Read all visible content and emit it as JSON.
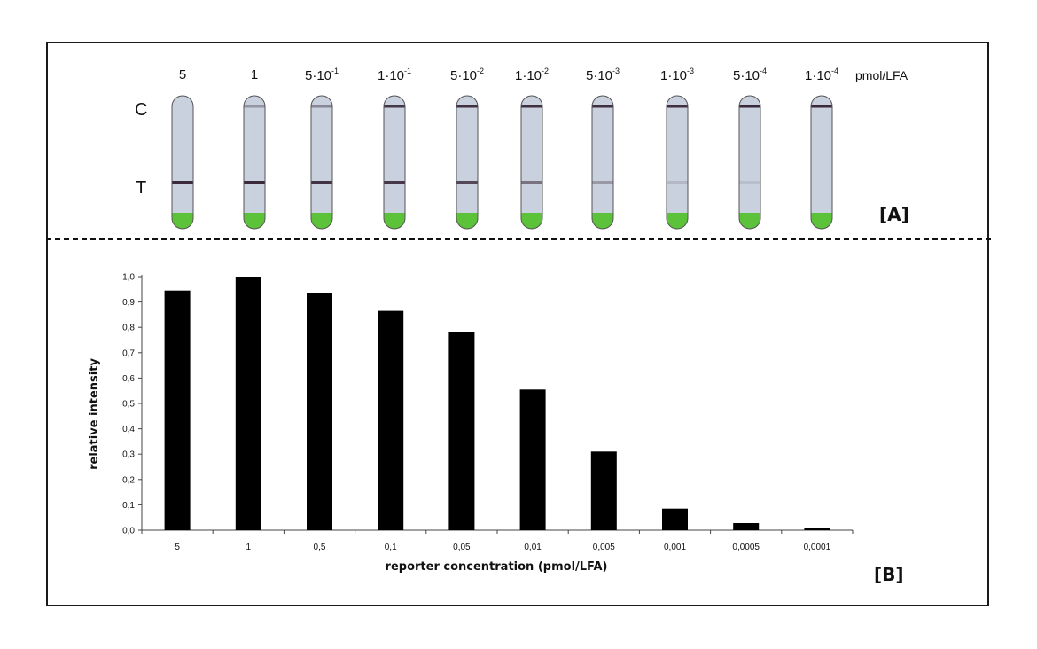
{
  "panel_a": {
    "tag": "[A]",
    "unit": "pmol/LFA",
    "row_c": "C",
    "row_t": "T",
    "strips": [
      {
        "base": "5",
        "exp": "",
        "control_intensity": 0.0,
        "test_intensity": 1.0
      },
      {
        "base": "1",
        "exp": "",
        "control_intensity": 0.25,
        "test_intensity": 1.0
      },
      {
        "base": "5·10",
        "exp": "-1",
        "control_intensity": 0.35,
        "test_intensity": 0.95
      },
      {
        "base": "1·10",
        "exp": "-1",
        "control_intensity": 0.9,
        "test_intensity": 0.9
      },
      {
        "base": "5·10",
        "exp": "-2",
        "control_intensity": 0.95,
        "test_intensity": 0.8
      },
      {
        "base": "1·10",
        "exp": "-2",
        "control_intensity": 0.95,
        "test_intensity": 0.55
      },
      {
        "base": "5·10",
        "exp": "-3",
        "control_intensity": 0.95,
        "test_intensity": 0.3
      },
      {
        "base": "1·10",
        "exp": "-3",
        "control_intensity": 0.95,
        "test_intensity": 0.1
      },
      {
        "base": "5·10",
        "exp": "-4",
        "control_intensity": 1.0,
        "test_intensity": 0.06
      },
      {
        "base": "1·10",
        "exp": "-4",
        "control_intensity": 1.0,
        "test_intensity": 0.0
      }
    ],
    "colors": {
      "strip": "#c9d0de",
      "line": "#3a2a3a",
      "pad": "#5cc23a"
    }
  },
  "panel_b_tag": "[B]",
  "chart_data": {
    "type": "bar",
    "categories": [
      "5",
      "1",
      "0,5",
      "0,1",
      "0,05",
      "0,01",
      "0,005",
      "0,001",
      "0,0005",
      "0,0001"
    ],
    "values": [
      0.945,
      1.0,
      0.935,
      0.865,
      0.78,
      0.555,
      0.31,
      0.085,
      0.028,
      0.007
    ],
    "xlabel": "reporter concentration (pmol/LFA)",
    "ylabel": "relative intensity",
    "ylim": [
      0,
      1.0
    ],
    "yticks": [
      "0,0",
      "0,1",
      "0,2",
      "0,3",
      "0,4",
      "0,5",
      "0,6",
      "0,7",
      "0,8",
      "0,9",
      "1,0"
    ],
    "grid": false,
    "bar_color": "#000000"
  }
}
